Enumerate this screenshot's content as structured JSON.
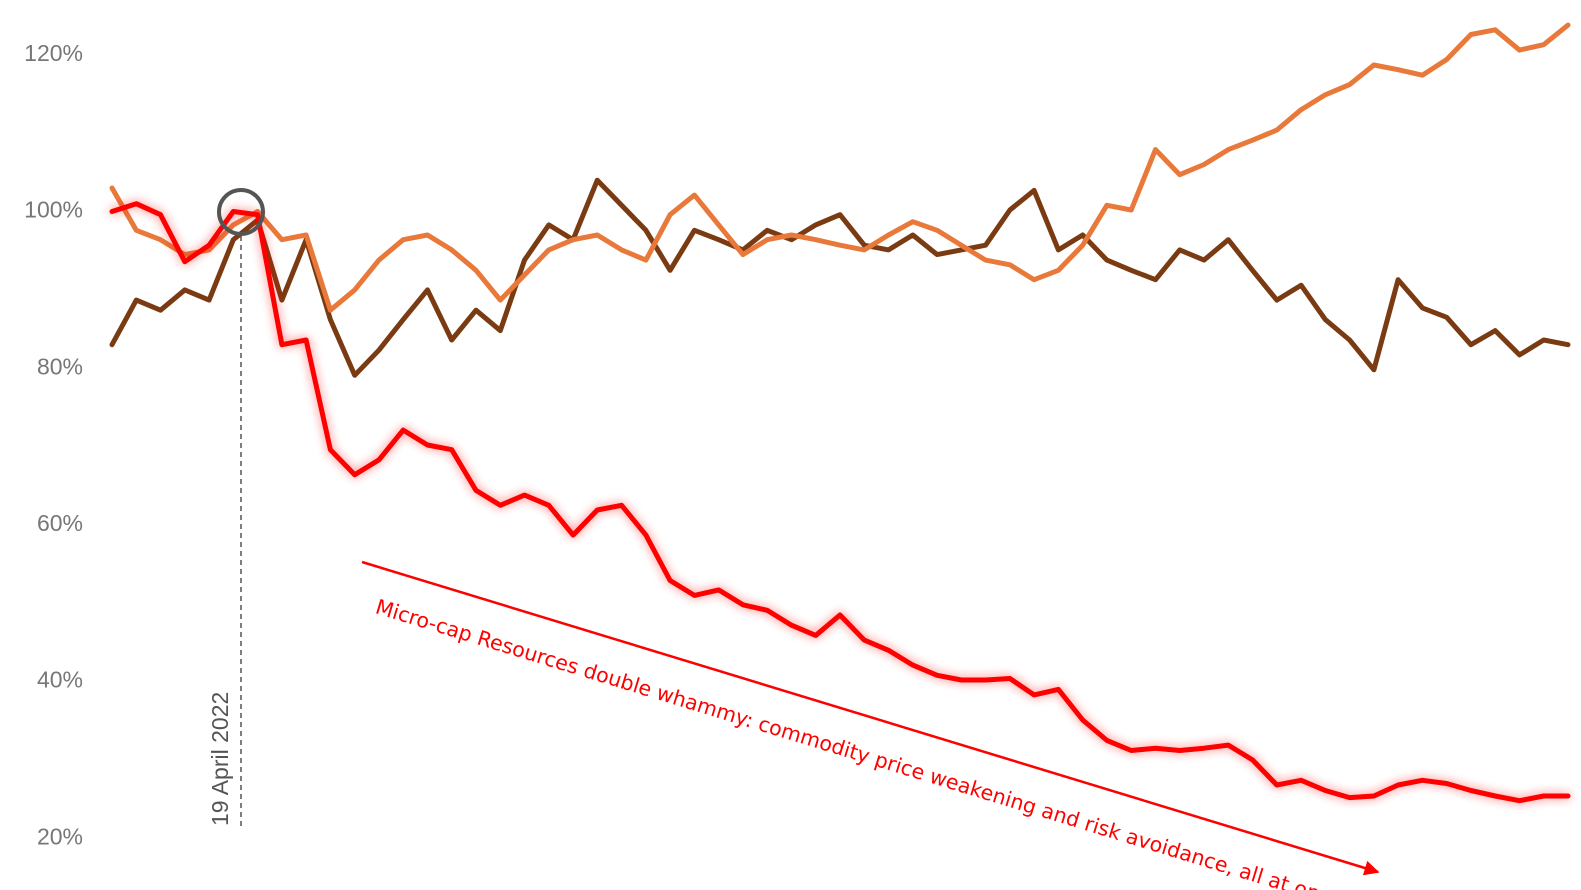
{
  "chart_data": {
    "type": "line",
    "series": [
      {
        "color": "#7a3b12",
        "values": [
          83,
          88.7,
          87.4,
          90,
          88.7,
          96.4,
          98.9,
          88.7,
          96.4,
          86.2,
          79.1,
          82.3,
          86.2,
          90,
          83.6,
          87.4,
          84.8,
          93.8,
          98.3,
          96.4,
          104,
          100.8,
          97.6,
          92.5,
          97.6,
          96.4,
          95.1,
          97.6,
          96.4,
          98.3,
          99.6,
          95.7,
          95.1,
          97,
          94.5,
          95.1,
          95.7,
          100.2,
          102.7,
          95.1,
          97,
          93.8,
          92.5,
          91.3,
          95.1,
          93.8,
          96.4,
          92.5,
          88.7,
          90.6,
          86.2,
          83.6,
          79.8,
          91.3,
          87.7,
          86.5,
          83,
          84.8,
          81.7,
          83.6,
          83
        ]
      },
      {
        "color": "#e8793a",
        "values": [
          103,
          97.6,
          96.4,
          94.5,
          95.1,
          98.3,
          100,
          96.4,
          97,
          87.4,
          90,
          93.8,
          96.4,
          97,
          95.1,
          92.5,
          88.7,
          91.9,
          95.1,
          96.4,
          97,
          95.1,
          93.8,
          99.6,
          102.1,
          98.3,
          94.5,
          96.4,
          97,
          96.4,
          95.7,
          95.1,
          97,
          98.7,
          97.6,
          95.7,
          93.8,
          93.2,
          91.3,
          92.5,
          95.7,
          100.8,
          100.2,
          107.9,
          104.7,
          106,
          107.9,
          109.1,
          110.4,
          113,
          114.9,
          116.2,
          118.7,
          118.1,
          117.4,
          119.4,
          122.6,
          123.2,
          120.6,
          121.3,
          123.8
        ]
      },
      {
        "color": "#ff0000",
        "glow": true,
        "values": [
          100,
          101,
          99.6,
          93.6,
          95.7,
          100,
          99.6,
          83,
          83.6,
          69.6,
          66.4,
          68.3,
          72.1,
          70.2,
          69.6,
          64.4,
          62.5,
          63.8,
          62.5,
          58.7,
          61.9,
          62.5,
          58.7,
          52.9,
          51,
          51.7,
          49.8,
          49.1,
          47.2,
          45.9,
          48.5,
          45.3,
          44,
          42.1,
          40.8,
          40.2,
          40.2,
          40.4,
          38.3,
          39,
          35.1,
          32.5,
          31.2,
          31.5,
          31.2,
          31.5,
          31.9,
          30,
          26.8,
          27.4,
          26.1,
          25.2,
          25.4,
          26.8,
          27.4,
          27,
          26.1,
          25.4,
          24.8,
          25.4,
          25.4
        ]
      }
    ],
    "ylim": [
      13.4,
      127
    ],
    "yticks": [
      {
        "value": 20,
        "label": "20%"
      },
      {
        "value": 40,
        "label": "40%"
      },
      {
        "value": 60,
        "label": "60%"
      },
      {
        "value": 80,
        "label": "80%"
      },
      {
        "value": 100,
        "label": "100%"
      },
      {
        "value": 120,
        "label": "120%"
      }
    ],
    "annotations": [
      {
        "text": "19 April 2022"
      },
      {
        "text": "Micro-cap Resources double whammy: commodity price weakening and risk avoidance, all at once"
      }
    ]
  }
}
